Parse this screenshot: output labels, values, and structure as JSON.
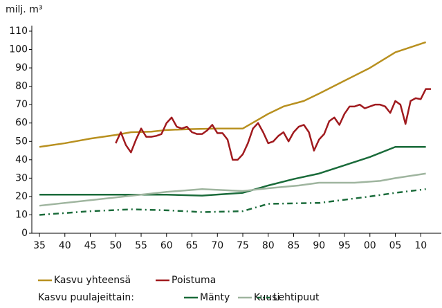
{
  "chart_data": {
    "type": "line",
    "y_unit": "milj. m³",
    "xlim": [
      1933.5,
      2013.5
    ],
    "xticks": [
      {
        "value": 1935,
        "label": "35"
      },
      {
        "value": 1940,
        "label": "40"
      },
      {
        "value": 1945,
        "label": "45"
      },
      {
        "value": 1950,
        "label": "50"
      },
      {
        "value": 1955,
        "label": "55"
      },
      {
        "value": 1960,
        "label": "60"
      },
      {
        "value": 1965,
        "label": "65"
      },
      {
        "value": 1970,
        "label": "70"
      },
      {
        "value": 1975,
        "label": "75"
      },
      {
        "value": 1980,
        "label": "80"
      },
      {
        "value": 1985,
        "label": "85"
      },
      {
        "value": 1990,
        "label": "90"
      },
      {
        "value": 1995,
        "label": "95"
      },
      {
        "value": 2000,
        "label": "00"
      },
      {
        "value": 2005,
        "label": "05"
      },
      {
        "value": 2010,
        "label": "10"
      }
    ],
    "ylim": [
      0,
      110
    ],
    "yticks": [
      0,
      10,
      20,
      30,
      40,
      50,
      60,
      70,
      80,
      90,
      100,
      110
    ],
    "grid": false,
    "legend_group_label": "Kasvu puulajeittain:",
    "series": [
      {
        "name": "Kasvu yhteensä",
        "color": "#b8901f",
        "dashed": false,
        "x": [
          1935,
          1940,
          1945,
          1950,
          1953,
          1957,
          1960,
          1965,
          1970,
          1975,
          1980,
          1983,
          1987,
          1990,
          1995,
          2000,
          2005,
          2011
        ],
        "values": [
          47,
          49,
          51.5,
          53.5,
          55,
          55.3,
          56.2,
          56.7,
          57,
          57,
          65,
          69,
          72,
          76,
          83,
          90,
          98.5,
          104
        ]
      },
      {
        "name": "Poistuma",
        "color": "#a01a1e",
        "dashed": false,
        "x": [
          1950,
          1951,
          1952,
          1953,
          1954,
          1955,
          1956,
          1957,
          1958,
          1959,
          1960,
          1961,
          1962,
          1963,
          1964,
          1965,
          1966,
          1967,
          1968,
          1969,
          1970,
          1971,
          1972,
          1973,
          1974,
          1975,
          1976,
          1977,
          1978,
          1979,
          1980,
          1981,
          1982,
          1983,
          1984,
          1985,
          1986,
          1987,
          1988,
          1989,
          1990,
          1991,
          1992,
          1993,
          1994,
          1995,
          1996,
          1997,
          1998,
          1999,
          2000,
          2001,
          2002,
          2003,
          2004,
          2005,
          2006,
          2007,
          2008,
          2009,
          2010,
          2011,
          2012
        ],
        "values": [
          49,
          55,
          48,
          44,
          51,
          57,
          52.5,
          52.5,
          53,
          54,
          60,
          63,
          58,
          57,
          58,
          55,
          54,
          54,
          56,
          59,
          54.5,
          54.5,
          51,
          40,
          40,
          43,
          49,
          57,
          60,
          55,
          49,
          50,
          53,
          55,
          50,
          55,
          58,
          59,
          55,
          45,
          51,
          54,
          61,
          63,
          59,
          65,
          69,
          69,
          70,
          68,
          69,
          70,
          70,
          69,
          65.5,
          72,
          70,
          59.5,
          72,
          73.5,
          73,
          78.5,
          78.5
        ]
      },
      {
        "name": "Mänty",
        "color": "#1a6b3a",
        "dashed": false,
        "x": [
          1935,
          1960,
          1967,
          1975,
          1980,
          1985,
          1990,
          1995,
          2000,
          2005,
          2011
        ],
        "values": [
          21,
          21,
          20.5,
          22,
          26,
          29.5,
          32.5,
          37,
          41.5,
          47,
          47
        ]
      },
      {
        "name": "Kuusi",
        "color": "#9fb59f",
        "dashed": false,
        "x": [
          1935,
          1945,
          1955,
          1960,
          1967,
          1975,
          1980,
          1986,
          1990,
          1997,
          2002,
          2005,
          2011
        ],
        "values": [
          15,
          18,
          21,
          22.5,
          24,
          23,
          24.5,
          26,
          27.5,
          27.5,
          28.5,
          30,
          32.5
        ]
      },
      {
        "name": "Lehtipuut",
        "color": "#1a6b3a",
        "dashed": true,
        "x": [
          1935,
          1945,
          1953,
          1960,
          1967,
          1975,
          1980,
          1990,
          2000,
          2005,
          2011
        ],
        "values": [
          10,
          12,
          13,
          12.5,
          11.5,
          12,
          16,
          16.5,
          20,
          22,
          24
        ]
      }
    ]
  }
}
